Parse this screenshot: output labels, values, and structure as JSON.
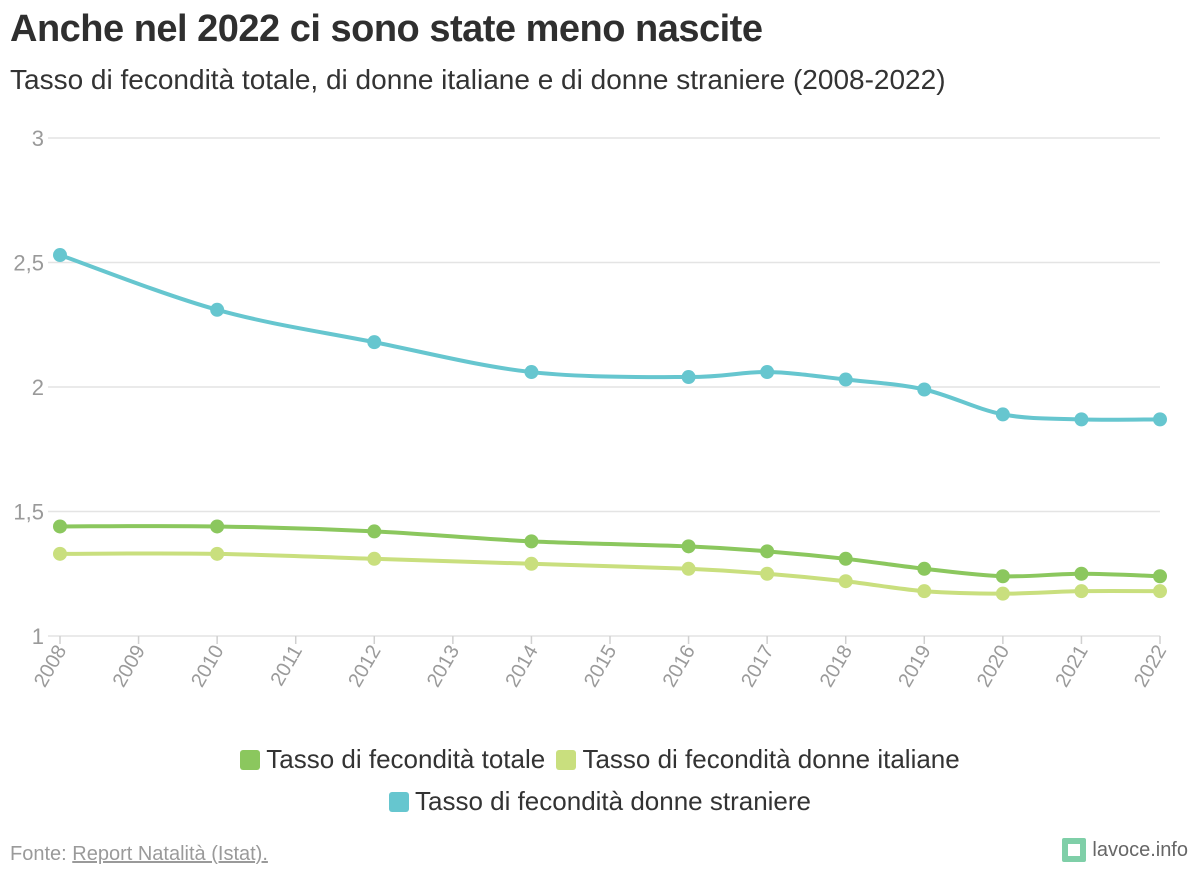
{
  "title": "Anche nel 2022 ci sono state meno nascite",
  "subtitle": "Tasso di fecondità totale, di donne italiane e di donne straniere (2008-2022)",
  "footer": {
    "prefix": "Fonte: ",
    "source": "Report Natalità (Istat)."
  },
  "brand": {
    "name": "lavoce.info"
  },
  "chart_data": {
    "type": "line",
    "title": "Anche nel 2022 ci sono state meno nascite",
    "subtitle": "Tasso di fecondità totale, di donne italiane e di donne straniere (2008-2022)",
    "xlabel": "",
    "ylabel": "",
    "x_ticks": [
      "2008",
      "2009",
      "2010",
      "2011",
      "2012",
      "2013",
      "2014",
      "2015",
      "2016",
      "2017",
      "2018",
      "2019",
      "2020",
      "2021",
      "2022"
    ],
    "y_ticks": [
      "1",
      "1,5",
      "2",
      "2,5",
      "3"
    ],
    "ylim": [
      1,
      3
    ],
    "xlim": [
      2008,
      2022
    ],
    "grid": true,
    "legend_position": "bottom",
    "series": [
      {
        "name": "Tasso di fecondità totale",
        "color": "#8bc75e",
        "x": [
          2008,
          2010,
          2012,
          2014,
          2016,
          2017,
          2018,
          2019,
          2020,
          2021,
          2022
        ],
        "values": [
          1.44,
          1.44,
          1.42,
          1.38,
          1.36,
          1.34,
          1.31,
          1.27,
          1.24,
          1.25,
          1.24
        ]
      },
      {
        "name": "Tasso di fecondità donne italiane",
        "color": "#c9df7e",
        "x": [
          2008,
          2010,
          2012,
          2014,
          2016,
          2017,
          2018,
          2019,
          2020,
          2021,
          2022
        ],
        "values": [
          1.33,
          1.33,
          1.31,
          1.29,
          1.27,
          1.25,
          1.22,
          1.18,
          1.17,
          1.18,
          1.18
        ]
      },
      {
        "name": "Tasso di fecondità donne straniere",
        "color": "#66c6cf",
        "x": [
          2008,
          2010,
          2012,
          2014,
          2016,
          2017,
          2018,
          2019,
          2020,
          2021,
          2022
        ],
        "values": [
          2.53,
          2.31,
          2.18,
          2.06,
          2.04,
          2.06,
          2.03,
          1.99,
          1.89,
          1.87,
          1.87
        ]
      }
    ]
  }
}
